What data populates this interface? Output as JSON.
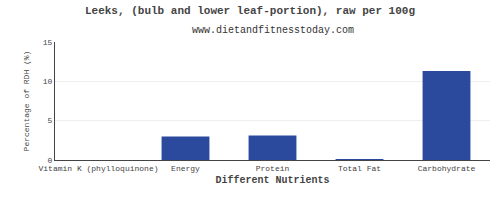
{
  "chart_data": {
    "type": "bar",
    "title": "Leeks, (bulb and lower leaf-portion), raw per 100g",
    "subtitle": "www.dietandfitnesstoday.com",
    "xlabel": "Different Nutrients",
    "ylabel": "Percentage of RDH (%)",
    "categories": [
      "Vitamin K (phylloquinone)",
      "Energy",
      "Protein",
      "Total Fat",
      "Carbohydrate"
    ],
    "values": [
      0.0,
      3.0,
      3.1,
      0.1,
      11.3
    ],
    "color": "#2b4a9e",
    "ylim": [
      0,
      15
    ],
    "yticks": [
      0,
      5,
      10,
      15
    ],
    "grid": true
  }
}
